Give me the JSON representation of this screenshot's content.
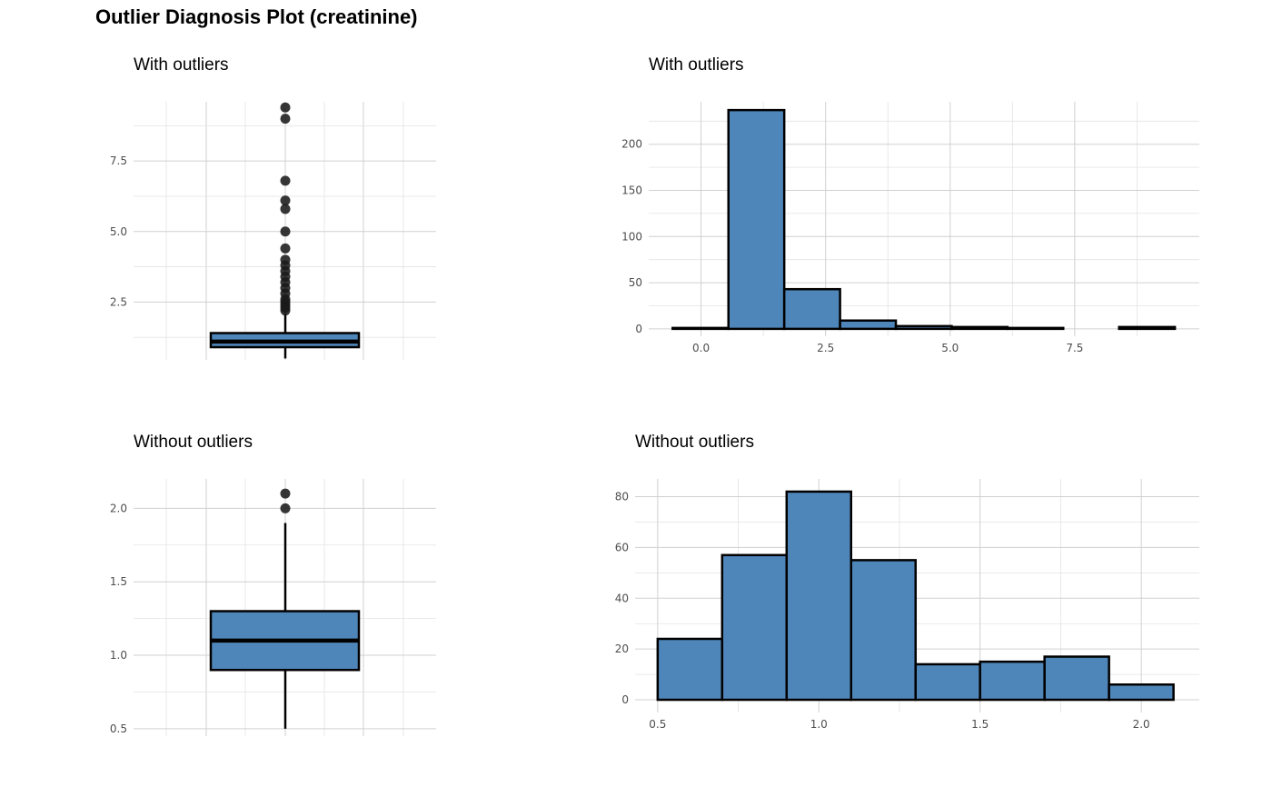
{
  "title": "Outlier Diagnosis Plot (creatinine)",
  "colors": {
    "fill": "#4f86b9",
    "stroke": "#000000",
    "point": "#1a1a1a"
  },
  "chart_data": [
    {
      "id": "box_with",
      "type": "boxplot",
      "title": "With outliers",
      "ylim": [
        0.45,
        9.6
      ],
      "yticks": [
        2.5,
        5.0,
        7.5
      ],
      "ytick_labels": [
        "2.5",
        "5.0",
        "7.5"
      ],
      "yminor": [
        1.25,
        3.75,
        6.25,
        8.75
      ],
      "box": {
        "q1": 0.9,
        "median": 1.1,
        "q3": 1.4,
        "whisker_low": 0.5,
        "whisker_high": 2.1
      },
      "outliers": [
        2.2,
        2.3,
        2.4,
        2.5,
        2.6,
        2.8,
        3.0,
        3.2,
        3.4,
        3.6,
        3.8,
        4.0,
        4.4,
        5.0,
        5.8,
        6.1,
        6.8,
        9.0,
        9.4
      ]
    },
    {
      "id": "hist_with",
      "type": "histogram",
      "title": "With outliers",
      "xlim": [
        -1.05,
        10.0
      ],
      "ylim": [
        -8,
        246
      ],
      "xticks": [
        0.0,
        2.5,
        5.0,
        7.5
      ],
      "xtick_labels": [
        "0.0",
        "2.5",
        "5.0",
        "7.5"
      ],
      "xminor": [
        -1.25,
        1.25,
        3.75,
        6.25,
        8.75
      ],
      "yticks": [
        0,
        50,
        100,
        150,
        200
      ],
      "ytick_labels": [
        "0",
        "50",
        "100",
        "150",
        "200"
      ],
      "yminor": [
        25,
        75,
        125,
        175,
        225
      ],
      "bins": [
        {
          "x0": -0.57,
          "x1": 0.55,
          "count": 1
        },
        {
          "x0": 0.55,
          "x1": 1.67,
          "count": 237
        },
        {
          "x0": 1.67,
          "x1": 2.79,
          "count": 43
        },
        {
          "x0": 2.79,
          "x1": 3.91,
          "count": 9
        },
        {
          "x0": 3.91,
          "x1": 5.03,
          "count": 3
        },
        {
          "x0": 5.03,
          "x1": 6.15,
          "count": 2
        },
        {
          "x0": 6.15,
          "x1": 7.27,
          "count": 1
        },
        {
          "x0": 7.27,
          "x1": 8.39,
          "count": 0
        },
        {
          "x0": 8.39,
          "x1": 9.51,
          "count": 2
        }
      ]
    },
    {
      "id": "box_without",
      "type": "boxplot",
      "title": "Without outliers",
      "ylim": [
        0.45,
        2.2
      ],
      "yticks": [
        0.5,
        1.0,
        1.5,
        2.0
      ],
      "ytick_labels": [
        "0.5",
        "1.0",
        "1.5",
        "2.0"
      ],
      "yminor": [
        0.75,
        1.25,
        1.75
      ],
      "box": {
        "q1": 0.9,
        "median": 1.1,
        "q3": 1.3,
        "whisker_low": 0.5,
        "whisker_high": 1.9
      },
      "outliers": [
        2.0,
        2.1
      ]
    },
    {
      "id": "hist_without",
      "type": "histogram",
      "title": "Without outliers",
      "xlim": [
        0.43,
        2.18
      ],
      "ylim": [
        -5,
        87
      ],
      "xticks": [
        0.5,
        1.0,
        1.5,
        2.0
      ],
      "xtick_labels": [
        "0.5",
        "1.0",
        "1.5",
        "2.0"
      ],
      "xminor": [
        0.75,
        1.25,
        1.75
      ],
      "yticks": [
        0,
        20,
        40,
        60,
        80
      ],
      "ytick_labels": [
        "0",
        "20",
        "40",
        "60",
        "80"
      ],
      "yminor": [
        10,
        30,
        50,
        70
      ],
      "bins": [
        {
          "x0": 0.5,
          "x1": 0.7,
          "count": 24
        },
        {
          "x0": 0.7,
          "x1": 0.9,
          "count": 57
        },
        {
          "x0": 0.9,
          "x1": 1.1,
          "count": 82
        },
        {
          "x0": 1.1,
          "x1": 1.3,
          "count": 55
        },
        {
          "x0": 1.3,
          "x1": 1.5,
          "count": 14
        },
        {
          "x0": 1.5,
          "x1": 1.7,
          "count": 15
        },
        {
          "x0": 1.7,
          "x1": 1.9,
          "count": 17
        },
        {
          "x0": 1.9,
          "x1": 2.1,
          "count": 6
        }
      ]
    }
  ]
}
